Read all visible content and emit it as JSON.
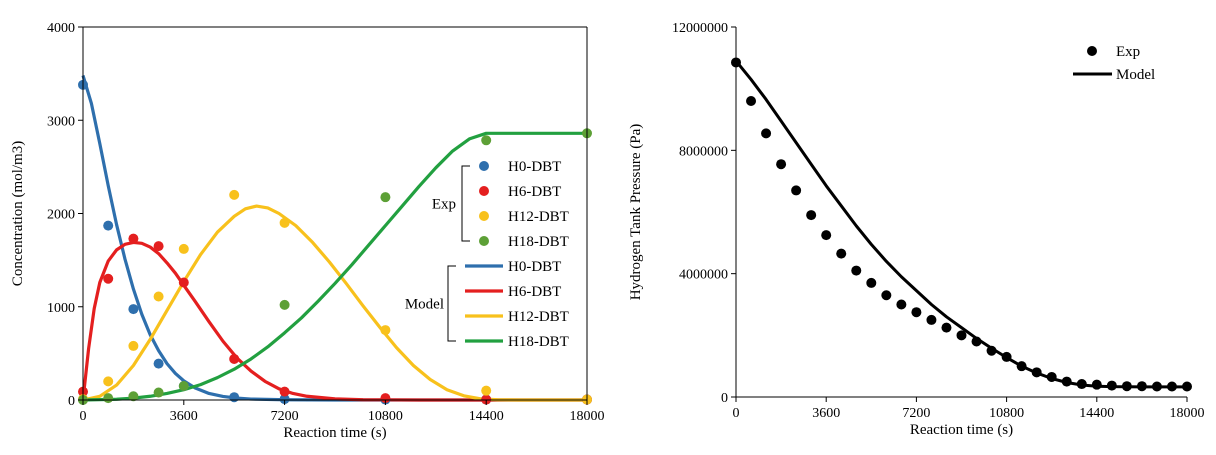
{
  "chart_data": [
    {
      "type": "scatter+line",
      "xlabel": "Reaction time (s)",
      "ylabel": "Concentration (mol/m3)",
      "xlim": [
        0,
        18000
      ],
      "ylim": [
        0,
        4000
      ],
      "xticks": [
        0,
        3600,
        7200,
        10800,
        14400,
        18000
      ],
      "yticks": [
        0,
        1000,
        2000,
        3000,
        4000
      ],
      "grid": false,
      "legend_placement": "right",
      "legend_group_exp": "Exp",
      "legend_group_model": "Model",
      "exp_series": [
        {
          "name": "H0-DBT",
          "color": "#2e6fad",
          "points": [
            [
              0,
              3380
            ],
            [
              900,
              1870
            ],
            [
              1800,
              975
            ],
            [
              2700,
              390
            ],
            [
              3600,
              150
            ],
            [
              5400,
              30
            ],
            [
              7200,
              10
            ],
            [
              10800,
              5
            ],
            [
              14400,
              5
            ],
            [
              18000,
              5
            ]
          ]
        },
        {
          "name": "H6-DBT",
          "color": "#e41f1f",
          "points": [
            [
              0,
              90
            ],
            [
              900,
              1300
            ],
            [
              1800,
              1730
            ],
            [
              2700,
              1650
            ],
            [
              3600,
              1260
            ],
            [
              5400,
              440
            ],
            [
              7200,
              90
            ],
            [
              10800,
              20
            ],
            [
              14400,
              5
            ],
            [
              18000,
              5
            ]
          ]
        },
        {
          "name": "H12-DBT",
          "color": "#f8c11c",
          "points": [
            [
              0,
              10
            ],
            [
              900,
              200
            ],
            [
              1800,
              580
            ],
            [
              2700,
              1110
            ],
            [
              3600,
              1620
            ],
            [
              5400,
              2200
            ],
            [
              7200,
              1900
            ],
            [
              10800,
              750
            ],
            [
              14400,
              100
            ],
            [
              18000,
              5
            ]
          ]
        },
        {
          "name": "H18-DBT",
          "color": "#5da036",
          "points": [
            [
              0,
              0
            ],
            [
              900,
              20
            ],
            [
              1800,
              40
            ],
            [
              2700,
              80
            ],
            [
              3600,
              150
            ],
            [
              7200,
              1020
            ],
            [
              10800,
              2175
            ],
            [
              14400,
              2785
            ],
            [
              18000,
              2860
            ]
          ]
        }
      ],
      "model_series": [
        {
          "name": "H0-DBT",
          "color": "#2e6fad",
          "points": [
            [
              0,
              3480
            ],
            [
              300,
              3180
            ],
            [
              600,
              2750
            ],
            [
              900,
              2300
            ],
            [
              1200,
              1880
            ],
            [
              1500,
              1510
            ],
            [
              1800,
              1190
            ],
            [
              2100,
              920
            ],
            [
              2400,
              700
            ],
            [
              2700,
              530
            ],
            [
              3000,
              390
            ],
            [
              3300,
              285
            ],
            [
              3600,
              205
            ],
            [
              4000,
              130
            ],
            [
              4500,
              70
            ],
            [
              5000,
              38
            ],
            [
              5500,
              20
            ],
            [
              6000,
              10
            ],
            [
              7200,
              3
            ],
            [
              9000,
              0
            ],
            [
              18000,
              0
            ]
          ]
        },
        {
          "name": "H6-DBT",
          "color": "#e41f1f",
          "points": [
            [
              0,
              0
            ],
            [
              200,
              550
            ],
            [
              400,
              980
            ],
            [
              600,
              1260
            ],
            [
              900,
              1490
            ],
            [
              1200,
              1610
            ],
            [
              1500,
              1670
            ],
            [
              1800,
              1690
            ],
            [
              2100,
              1680
            ],
            [
              2400,
              1640
            ],
            [
              2700,
              1570
            ],
            [
              3000,
              1470
            ],
            [
              3300,
              1360
            ],
            [
              3600,
              1230
            ],
            [
              4000,
              1060
            ],
            [
              4500,
              840
            ],
            [
              5000,
              630
            ],
            [
              5500,
              450
            ],
            [
              6000,
              310
            ],
            [
              6500,
              200
            ],
            [
              7000,
              120
            ],
            [
              7500,
              70
            ],
            [
              8000,
              40
            ],
            [
              9000,
              12
            ],
            [
              10000,
              3
            ],
            [
              12000,
              0
            ],
            [
              18000,
              0
            ]
          ]
        },
        {
          "name": "H12-DBT",
          "color": "#f8c11c",
          "points": [
            [
              0,
              0
            ],
            [
              600,
              40
            ],
            [
              1200,
              160
            ],
            [
              1800,
              370
            ],
            [
              2400,
              650
            ],
            [
              3000,
              960
            ],
            [
              3600,
              1270
            ],
            [
              4200,
              1560
            ],
            [
              4800,
              1800
            ],
            [
              5400,
              1970
            ],
            [
              5800,
              2050
            ],
            [
              6200,
              2080
            ],
            [
              6600,
              2060
            ],
            [
              7000,
              2000
            ],
            [
              7600,
              1870
            ],
            [
              8200,
              1690
            ],
            [
              8800,
              1480
            ],
            [
              9400,
              1250
            ],
            [
              10000,
              1010
            ],
            [
              10600,
              780
            ],
            [
              11200,
              560
            ],
            [
              11800,
              370
            ],
            [
              12400,
              220
            ],
            [
              13000,
              110
            ],
            [
              13600,
              45
            ],
            [
              14200,
              12
            ],
            [
              14800,
              3
            ],
            [
              15600,
              0
            ],
            [
              18000,
              0
            ]
          ]
        },
        {
          "name": "H18-DBT",
          "color": "#22a040",
          "points": [
            [
              0,
              0
            ],
            [
              1200,
              8
            ],
            [
              1800,
              20
            ],
            [
              2400,
              40
            ],
            [
              3000,
              70
            ],
            [
              3600,
              110
            ],
            [
              4200,
              165
            ],
            [
              4800,
              240
            ],
            [
              5400,
              330
            ],
            [
              6000,
              440
            ],
            [
              6600,
              570
            ],
            [
              7200,
              720
            ],
            [
              7800,
              880
            ],
            [
              8400,
              1060
            ],
            [
              9000,
              1250
            ],
            [
              9600,
              1450
            ],
            [
              10200,
              1660
            ],
            [
              10800,
              1870
            ],
            [
              11400,
              2080
            ],
            [
              12000,
              2290
            ],
            [
              12600,
              2490
            ],
            [
              13200,
              2670
            ],
            [
              13800,
              2800
            ],
            [
              14400,
              2860
            ],
            [
              15000,
              2860
            ],
            [
              18000,
              2860
            ]
          ]
        }
      ]
    },
    {
      "type": "scatter+line",
      "xlabel": "Reaction time (s)",
      "ylabel": "Hydrogen Tank Pressure (Pa)",
      "xlim": [
        0,
        18000
      ],
      "ylim": [
        0,
        12000000
      ],
      "xticks": [
        0,
        3600,
        7200,
        10800,
        14400,
        18000
      ],
      "yticks": [
        0,
        4000000,
        8000000,
        12000000
      ],
      "grid": false,
      "legend_placement": "top-right",
      "color": "#000000",
      "exp_series": {
        "name": "Exp",
        "points": [
          [
            0,
            10850000
          ],
          [
            600,
            9600000
          ],
          [
            1200,
            8550000
          ],
          [
            1800,
            7550000
          ],
          [
            2400,
            6700000
          ],
          [
            3000,
            5900000
          ],
          [
            3600,
            5250000
          ],
          [
            4200,
            4650000
          ],
          [
            4800,
            4100000
          ],
          [
            5400,
            3700000
          ],
          [
            6000,
            3300000
          ],
          [
            6600,
            3000000
          ],
          [
            7200,
            2750000
          ],
          [
            7800,
            2500000
          ],
          [
            8400,
            2250000
          ],
          [
            9000,
            2000000
          ],
          [
            9600,
            1800000
          ],
          [
            10200,
            1500000
          ],
          [
            10800,
            1300000
          ],
          [
            11400,
            1000000
          ],
          [
            12000,
            800000
          ],
          [
            12600,
            650000
          ],
          [
            13200,
            500000
          ],
          [
            13800,
            420000
          ],
          [
            14400,
            400000
          ],
          [
            15000,
            370000
          ],
          [
            15600,
            350000
          ],
          [
            16200,
            350000
          ],
          [
            16800,
            340000
          ],
          [
            17400,
            340000
          ],
          [
            18000,
            340000
          ]
        ]
      },
      "model_series": {
        "name": "Model",
        "points": [
          [
            0,
            10900000
          ],
          [
            600,
            10300000
          ],
          [
            1200,
            9650000
          ],
          [
            1800,
            8950000
          ],
          [
            2400,
            8250000
          ],
          [
            3000,
            7550000
          ],
          [
            3600,
            6850000
          ],
          [
            4200,
            6200000
          ],
          [
            4800,
            5550000
          ],
          [
            5400,
            4950000
          ],
          [
            6000,
            4400000
          ],
          [
            6600,
            3900000
          ],
          [
            7200,
            3450000
          ],
          [
            7800,
            3000000
          ],
          [
            8400,
            2600000
          ],
          [
            9000,
            2250000
          ],
          [
            9600,
            1900000
          ],
          [
            10200,
            1580000
          ],
          [
            10800,
            1280000
          ],
          [
            11400,
            1000000
          ],
          [
            12000,
            780000
          ],
          [
            12600,
            600000
          ],
          [
            13200,
            470000
          ],
          [
            13800,
            390000
          ],
          [
            14400,
            350000
          ],
          [
            15000,
            335000
          ],
          [
            16200,
            330000
          ],
          [
            18000,
            330000
          ]
        ]
      }
    }
  ]
}
